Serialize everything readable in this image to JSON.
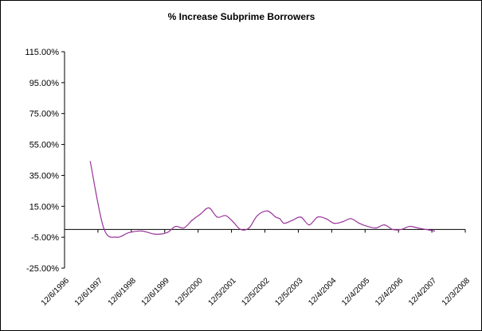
{
  "chart_data": {
    "type": "line",
    "title": "% Increase Subprime Borrowers",
    "xlabel": "",
    "ylabel": "",
    "ylim": [
      -25,
      115
    ],
    "y_ticks": [
      115,
      95,
      75,
      55,
      35,
      15,
      -5,
      -25
    ],
    "y_tick_labels": [
      "115.00%",
      "95.00%",
      "75.00%",
      "55.00%",
      "35.00%",
      "15.00%",
      "-5.00%",
      "-25.00%"
    ],
    "x_tick_labels": [
      "12/6/1996",
      "12/6/1997",
      "12/6/1998",
      "12/6/1999",
      "12/5/2000",
      "12/5/2001",
      "12/5/2002",
      "12/5/2003",
      "12/4/2004",
      "12/4/2005",
      "12/4/2006",
      "12/4/2007",
      "12/3/2008"
    ],
    "grid": false,
    "legend": "none",
    "line_color": "#993399",
    "series": [
      {
        "x": [
          1997.7,
          1998.1,
          1998.48,
          1998.86,
          1999.25,
          1999.63,
          2000.0,
          2000.25,
          2000.5,
          2000.75,
          2001.0,
          2001.25,
          2001.5,
          2001.75,
          2001.97,
          2002.2,
          2002.45,
          2002.7,
          2003.0,
          2003.25,
          2003.37,
          2003.5,
          2003.75,
          2004.0,
          2004.25,
          2004.5,
          2004.75,
          2005.0,
          2005.25,
          2005.5,
          2005.75,
          2006.0,
          2006.25,
          2006.5,
          2006.75,
          2007.0,
          2007.25,
          2007.5,
          2007.75,
          2008.0
        ],
        "y": [
          44,
          1,
          -5,
          -2,
          -1,
          -3,
          -2,
          2,
          1,
          6,
          10,
          14,
          8,
          9,
          5,
          0,
          1,
          9,
          12,
          8,
          7,
          4,
          6,
          8,
          3,
          8,
          7,
          4,
          5,
          7,
          4,
          2,
          1,
          3,
          0,
          0,
          2,
          1,
          0,
          -1
        ]
      }
    ]
  }
}
